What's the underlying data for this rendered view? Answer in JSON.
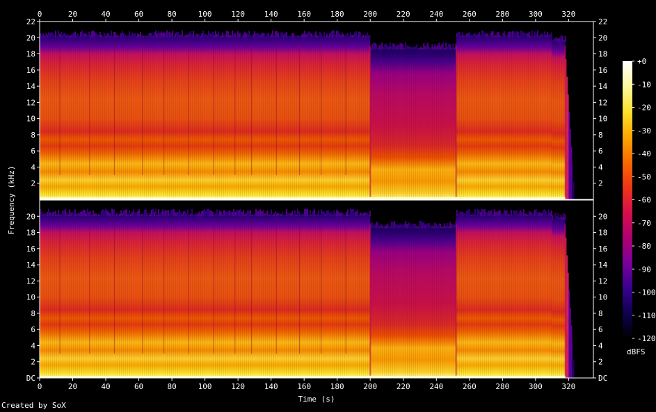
{
  "chart_data": {
    "type": "heatmap",
    "kind": "spectrogram",
    "xlabel": "Time (s)",
    "ylabel": "Frequency (kHz)",
    "xlim": [
      0,
      335
    ],
    "ylim": [
      0,
      22
    ],
    "x_ticks": [
      "0",
      "20",
      "40",
      "60",
      "80",
      "100",
      "120",
      "140",
      "160",
      "180",
      "200",
      "220",
      "240",
      "260",
      "280",
      "300",
      "320"
    ],
    "y_ticks_top_channel": [
      "2",
      "4",
      "6",
      "8",
      "10",
      "12",
      "14",
      "16",
      "18",
      "20",
      "22"
    ],
    "y_ticks_bottom_channel": [
      "DC",
      "2",
      "4",
      "6",
      "8",
      "10",
      "12",
      "14",
      "16",
      "18",
      "20"
    ],
    "colorbar": {
      "label": "dBFS",
      "ticks": [
        "+0",
        "-10",
        "-20",
        "-30",
        "-40",
        "-50",
        "-60",
        "-70",
        "-80",
        "-90",
        "-100",
        "-110",
        "-120"
      ],
      "range": [
        -120,
        0
      ],
      "colors": [
        "#000000",
        "#100050",
        "#3a0090",
        "#7a009a",
        "#b00070",
        "#d8104a",
        "#f03418",
        "#f86a00",
        "#fca800",
        "#fce02c",
        "#fef8a0",
        "#ffffff"
      ]
    },
    "channels": [
      {
        "name": "top",
        "cutoff_khz": [
          {
            "t0": 0,
            "t1": 200,
            "khz": 20
          },
          {
            "t0": 200,
            "t1": 252,
            "khz": 18.5
          },
          {
            "t0": 252,
            "t1": 310,
            "khz": 20
          },
          {
            "t0": 310,
            "t1": 318,
            "khz": 19.5
          }
        ],
        "notable_changes_s": [
          200,
          252,
          318
        ]
      },
      {
        "name": "bottom",
        "cutoff_khz": [
          {
            "t0": 0,
            "t1": 200,
            "khz": 20
          },
          {
            "t0": 200,
            "t1": 252,
            "khz": 18.5
          },
          {
            "t0": 252,
            "t1": 310,
            "khz": 20
          },
          {
            "t0": 310,
            "t1": 318,
            "khz": 19.5
          }
        ],
        "notable_changes_s": [
          200,
          252,
          318
        ]
      }
    ]
  },
  "footer": {
    "credit": "Created by SoX"
  }
}
